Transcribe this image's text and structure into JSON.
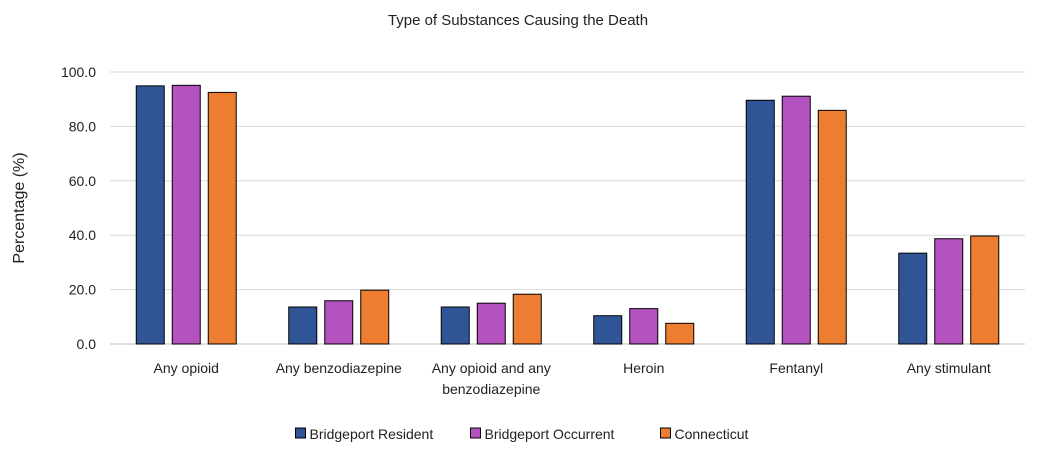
{
  "chart_data": {
    "type": "bar",
    "title": "Type of Substances Causing the Death",
    "xlabel": "",
    "ylabel": "Percentage (%)",
    "ylim": [
      0,
      100
    ],
    "yticks": [
      "0.0",
      "20.0",
      "40.0",
      "60.0",
      "80.0",
      "100.0"
    ],
    "grid": true,
    "legend_position": "bottom",
    "categories": [
      [
        "Any opioid"
      ],
      [
        "Any benzodiazepine"
      ],
      [
        "Any opioid and any",
        "benzodiazepine"
      ],
      [
        "Heroin"
      ],
      [
        "Fentanyl"
      ],
      [
        "Any stimulant"
      ]
    ],
    "series": [
      {
        "name": "Bridgeport Resident",
        "color": "#2F5597",
        "values": [
          94.9,
          13.6,
          13.6,
          10.4,
          89.6,
          33.4
        ]
      },
      {
        "name": "Bridgeport Occurrent",
        "color": "#B452C0",
        "values": [
          95.1,
          15.9,
          15.0,
          13.0,
          91.1,
          38.7
        ]
      },
      {
        "name": "Connecticut",
        "color": "#ED7D31",
        "values": [
          92.5,
          19.8,
          18.3,
          7.6,
          85.9,
          39.7
        ]
      }
    ]
  }
}
